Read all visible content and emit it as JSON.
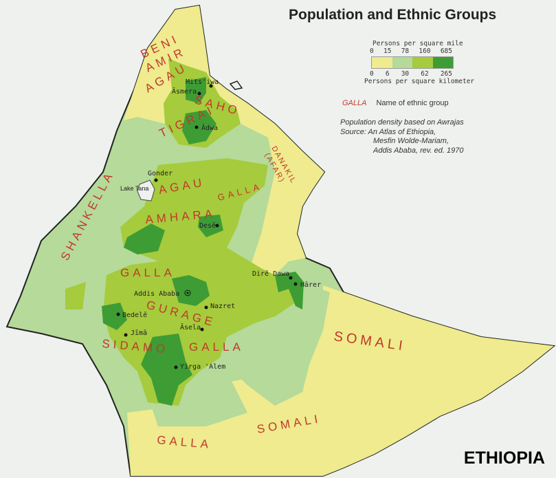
{
  "title": "Population and Ethnic Groups",
  "country": "ETHIOPIA",
  "legend": {
    "mile_label": "Persons per square mile",
    "mile_ticks": [
      "0",
      "15",
      "78",
      "160",
      "685"
    ],
    "km_ticks": [
      "0",
      "6",
      "30",
      "62",
      "265"
    ],
    "km_label": "Persons per square kilometer",
    "colors": [
      "#efeb8e",
      "#b5da9a",
      "#a6cb3c",
      "#3e9c34"
    ],
    "ethnic_sample": "GALLA",
    "ethnic_desc": "Name of ethnic group"
  },
  "notes": [
    "Population density based on Awrajas",
    "Source: An Atlas of Ethiopia,",
    "Mesfin Wolde-Mariam,",
    "Addis Ababa, rev. ed. 1970"
  ],
  "ethnic_groups": [
    "BENI",
    "AMIR",
    "AGAU",
    "SAHO",
    "TIGRAI",
    "DANAKIL",
    "(AFAR)",
    "AGAU",
    "GALLA",
    "AMHARA",
    "SHANKELLA",
    "GALLA",
    "GURAGE",
    "SIDAMO",
    "GALLA",
    "SOMALI",
    "SOMALI",
    "GALLA"
  ],
  "cities": [
    "Mits'iwa",
    "Āsmera",
    "Ādwa",
    "Gonder",
    "Lake Tana",
    "Desē",
    "Dirē Dawa",
    "Hārer",
    "Addis Ababa",
    "Nazret",
    "Bedelē",
    "Āsela",
    "Jīmā",
    "Yirga 'Alem"
  ]
}
